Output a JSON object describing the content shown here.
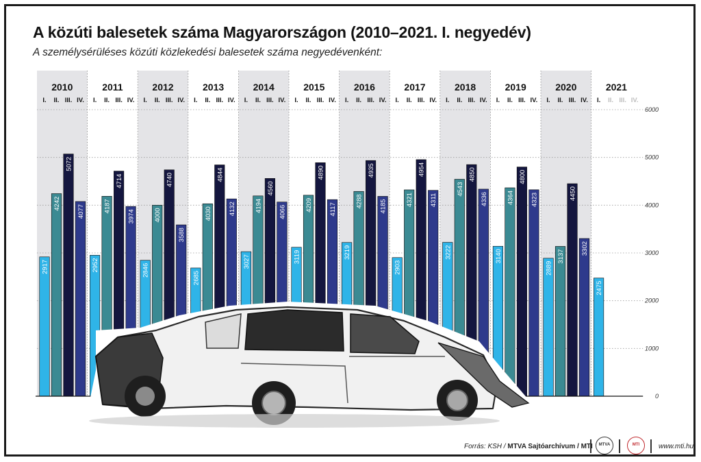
{
  "title": "A közúti balesetek száma Magyarországon (2010–2021. I. negyedév)",
  "subtitle": "A személysérüléses közúti közlekedési balesetek száma negyedévenként:",
  "colors": {
    "q1": "#2fb4e8",
    "q2": "#3b8a93",
    "q3": "#14163f",
    "q4": "#2e3a8c",
    "band": "#e4e4e7",
    "future": "#bdbdbd"
  },
  "chart_data": {
    "type": "bar",
    "categories": [
      "2010",
      "2011",
      "2012",
      "2013",
      "2014",
      "2015",
      "2016",
      "2017",
      "2018",
      "2019",
      "2020",
      "2021"
    ],
    "quarter_labels": [
      "I.",
      "II.",
      "III.",
      "IV."
    ],
    "series": [
      {
        "name": "I.",
        "values": [
          2917,
          2952,
          2846,
          2685,
          3027,
          3119,
          3219,
          2903,
          3222,
          3140,
          2889,
          2475
        ]
      },
      {
        "name": "II.",
        "values": [
          4242,
          4187,
          4000,
          4030,
          4194,
          4209,
          4288,
          4321,
          4543,
          4364,
          3137,
          null
        ]
      },
      {
        "name": "III.",
        "values": [
          5072,
          4714,
          4740,
          4844,
          4560,
          4890,
          4935,
          4954,
          4850,
          4800,
          4450,
          null
        ]
      },
      {
        "name": "IV.",
        "values": [
          4077,
          3974,
          3588,
          4132,
          4066,
          4117,
          4185,
          4311,
          4336,
          4323,
          3302,
          null
        ]
      }
    ],
    "ylim": [
      0,
      6000
    ],
    "yticks": [
      "0",
      "1000",
      "2000",
      "3000",
      "4000",
      "5000",
      "6000"
    ],
    "grid": true,
    "shaded_years": [
      "2010",
      "2012",
      "2014",
      "2016",
      "2018",
      "2020"
    ]
  },
  "footer": {
    "source_prefix": "Forrás: KSH / ",
    "source_bold": "MTVA Sajtóarchívum / MTI",
    "logo1": "MTVA",
    "logo2": "MTI",
    "website": "www.mti.hu"
  }
}
